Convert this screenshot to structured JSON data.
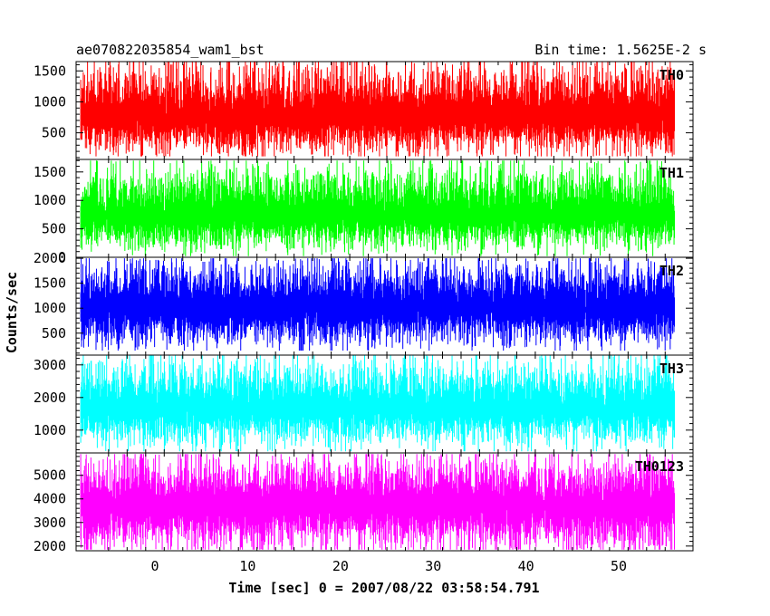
{
  "header": {
    "left_title": "ae070822035854_wam1_bst",
    "right_title": "Bin time: 1.5625E-2 s"
  },
  "chart_data": {
    "type": "line",
    "xlabel": "Time [sec] 0 = 2007/08/22 03:58:54.791",
    "ylabel": "Counts/sec",
    "x_range": [
      -8.5,
      58.0
    ],
    "data_x_range": [
      -8.0,
      56.0
    ],
    "x_ticks": [
      0,
      10,
      20,
      30,
      40,
      50
    ],
    "x_tick_labels": [
      "0",
      "10",
      "20",
      "30",
      "40",
      "50"
    ],
    "bin_time_s": 0.015625,
    "grid": false,
    "panels": [
      {
        "name": "TH0",
        "color": "#ff0000",
        "ylim": [
          70,
          1650
        ],
        "y_ticks": [
          500,
          1000,
          1500
        ],
        "y_tick_labels": [
          "500",
          "1000",
          "1500"
        ],
        "mean": 750,
        "spread_low": 580,
        "spread_high": 870,
        "min": 120,
        "max": 1650
      },
      {
        "name": "TH1",
        "color": "#00ff00",
        "ylim": [
          0,
          1720
        ],
        "y_ticks": [
          0,
          500,
          1000,
          1500
        ],
        "y_tick_labels": [
          "0",
          "500",
          "1000",
          "1500"
        ],
        "mean": 720,
        "spread_low": 560,
        "spread_high": 880,
        "min": 20,
        "max": 1700
      },
      {
        "name": "TH2",
        "color": "#0000ff",
        "ylim": [
          60,
          2020
        ],
        "y_ticks": [
          500,
          1000,
          1500,
          2000
        ],
        "y_tick_labels": [
          "500",
          "1000",
          "1500",
          "2000"
        ],
        "mean": 1000,
        "spread_low": 720,
        "spread_high": 930,
        "min": 150,
        "max": 2000
      },
      {
        "name": "TH3",
        "color": "#00ffff",
        "ylim": [
          300,
          3300
        ],
        "y_ticks": [
          1000,
          2000,
          3000
        ],
        "y_tick_labels": [
          "1000",
          "2000",
          "3000"
        ],
        "mean": 1650,
        "spread_low": 1050,
        "spread_high": 1500,
        "min": 350,
        "max": 3300
      },
      {
        "name": "TH0123",
        "color": "#ff00ff",
        "ylim": [
          1800,
          5950
        ],
        "y_ticks": [
          2000,
          3000,
          4000,
          5000
        ],
        "y_tick_labels": [
          "2000",
          "3000",
          "4000",
          "5000"
        ],
        "mean": 3700,
        "spread_low": 1850,
        "spread_high": 2100,
        "min": 1850,
        "max": 5900
      }
    ]
  }
}
